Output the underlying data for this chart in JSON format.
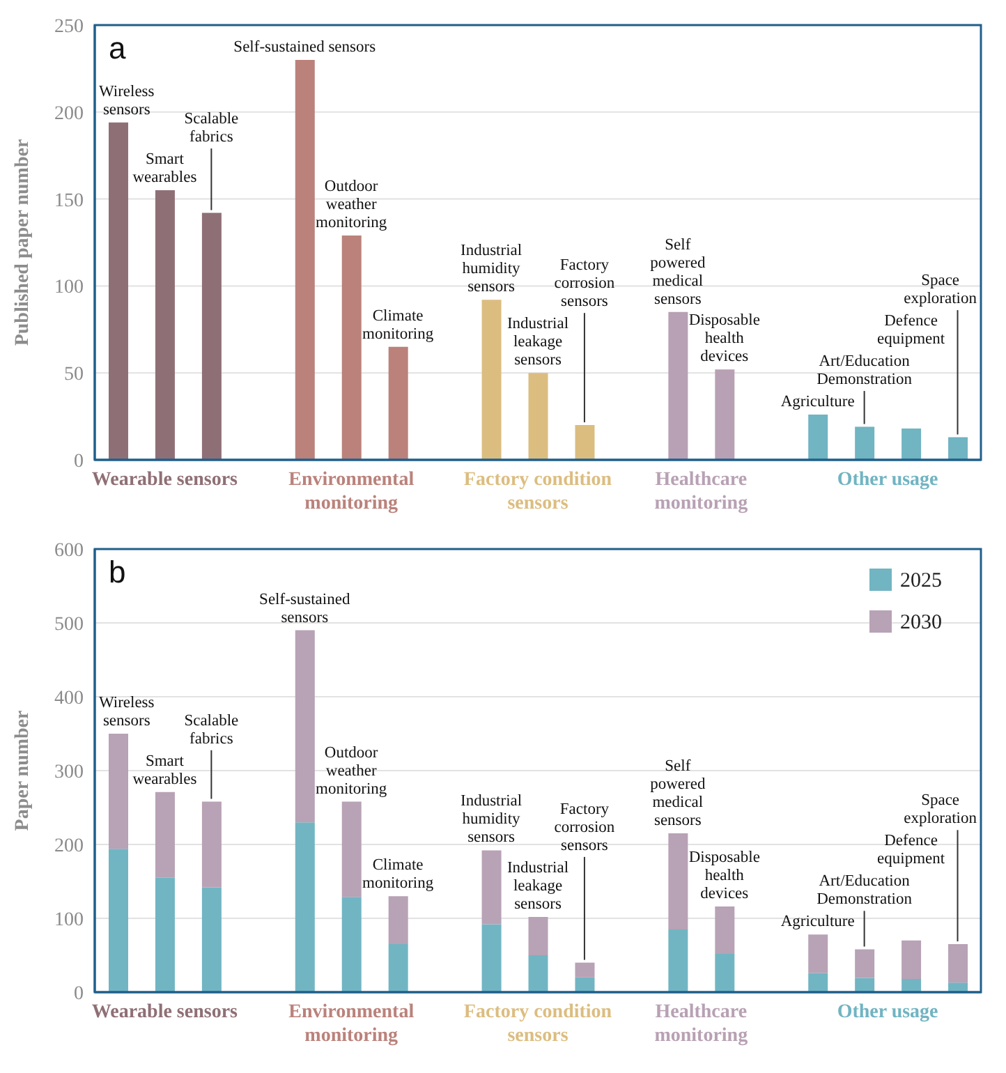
{
  "chart_data": [
    {
      "type": "bar",
      "title": "a",
      "ylabel": "Published paper number",
      "categories": [
        "Wireless sensors",
        "Smart wearables",
        "Scalable fabrics",
        null,
        "Self-sustained sensors",
        "Outdoor weather monitoring",
        "Climate monitoring",
        null,
        "Industrial humidity sensors",
        "Industrial leakage sensors",
        "Factory corrosion sensors",
        null,
        "Self powered medical sensors",
        "Disposable health devices",
        null,
        "Agriculture",
        "Art/Education Demonstration",
        "Defence equipment",
        "Space exploration"
      ],
      "values": [
        194,
        155,
        142,
        null,
        230,
        129,
        65,
        null,
        92,
        50,
        20,
        null,
        85,
        52,
        null,
        26,
        19,
        18,
        13
      ],
      "colors": [
        "#8f6f76",
        "#8f6f76",
        "#8f6f76",
        null,
        "#ba827b",
        "#ba827b",
        "#ba827b",
        null,
        "#dcbd80",
        "#dcbd80",
        "#dcbd80",
        null,
        "#b8a1b4",
        "#b8a1b4",
        null,
        "#71b4c2",
        "#71b4c2",
        "#71b4c2",
        "#71b4c2"
      ],
      "annotations": [
        "Wearable sensors",
        "Environmental monitoring",
        "Factory condition sensors",
        "Healthcare monitoring",
        "Other usage"
      ],
      "ylim": [
        0,
        250
      ],
      "yticks": [
        0,
        50,
        100,
        150,
        200,
        250
      ],
      "grid": "y"
    },
    {
      "type": "bar",
      "title": "b",
      "ylabel": "Paper number",
      "stacked": true,
      "legend": "top right",
      "categories": [
        "Wireless sensors",
        "Smart wearables",
        "Scalable fabrics",
        null,
        "Self-sustained sensors",
        "Outdoor weather monitoring",
        "Climate monitoring",
        null,
        "Industrial humidity sensors",
        "Industrial leakage sensors",
        "Factory corrosion sensors",
        null,
        "Self powered medical sensors",
        "Disposable health devices",
        null,
        "Agriculture",
        "Art/Education Demonstration",
        "Defence equipment",
        "Space exploration"
      ],
      "series": [
        {
          "name": "2025",
          "color": "#71b5c3",
          "values": [
            194,
            155,
            142,
            null,
            230,
            129,
            65,
            null,
            92,
            50,
            20,
            null,
            85,
            52,
            null,
            26,
            19,
            18,
            13
          ]
        },
        {
          "name": "2030",
          "color": "#b8a2b5",
          "values": [
            156,
            116,
            116,
            null,
            260,
            129,
            65,
            null,
            100,
            52,
            20,
            null,
            130,
            64,
            null,
            52,
            39,
            52,
            52
          ]
        }
      ],
      "annotations": [
        "Wearable sensors",
        "Environmental monitoring",
        "Factory condition sensors",
        "Healthcare monitoring",
        "Other usage"
      ],
      "ylim": [
        0,
        600
      ],
      "yticks": [
        0,
        100,
        200,
        300,
        400,
        500,
        600
      ],
      "grid": "y"
    }
  ]
}
